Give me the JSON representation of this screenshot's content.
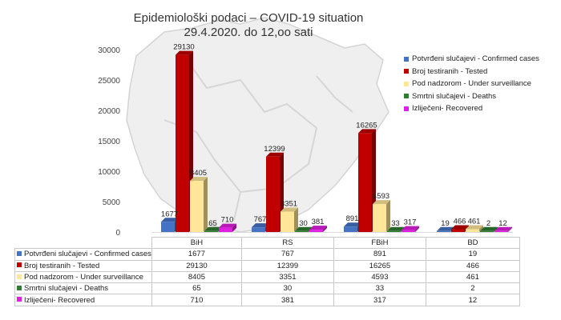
{
  "title_lines": [
    "Epidemiološki podaci – COVID-19 situation",
    "29.4.2020. do 12,oo sati"
  ],
  "chart_data": {
    "type": "bar",
    "title": "Epidemiološki podaci – COVID-19 situation 29.4.2020. do 12,oo sati",
    "categories": [
      "BiH",
      "RS",
      "FBiH",
      "BD"
    ],
    "series": [
      {
        "name": "Potvrđeni slučajevi - Confirmed cases",
        "color": "#4472c4",
        "values": [
          1677,
          767,
          891,
          19
        ]
      },
      {
        "name": "Broj testiranih - Tested",
        "color": "#c00000",
        "values": [
          29130,
          12399,
          16265,
          466
        ]
      },
      {
        "name": "Pod nadzorom - Under surveillance",
        "color": "#ffe699",
        "values": [
          8405,
          3351,
          4593,
          461
        ]
      },
      {
        "name": "Smrtni slučajevi - Deaths",
        "color": "#2e7d32",
        "values": [
          65,
          30,
          33,
          2
        ]
      },
      {
        "name": "Izliječeni- Recovered",
        "color": "#e020e0",
        "values": [
          710,
          381,
          317,
          12
        ]
      }
    ],
    "y_ticks": [
      "0",
      "5000",
      "10000",
      "15000",
      "20000",
      "25000",
      "30000"
    ],
    "ylim": [
      0,
      30000
    ],
    "legend_position": "right",
    "grid": false,
    "style": "3d-column"
  }
}
